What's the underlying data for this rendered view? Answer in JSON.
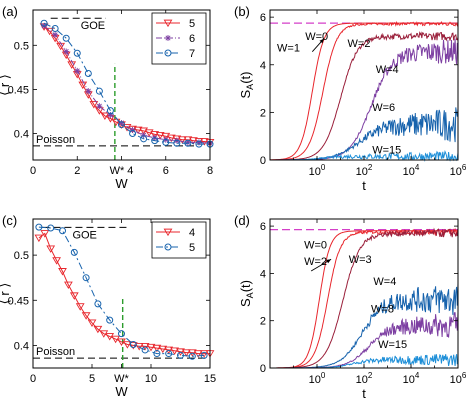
{
  "colors": {
    "red": "#e8262c",
    "purple": "#7d3fa2",
    "blue": "#1763ad",
    "green": "#2c9c2c",
    "magenta": "#d43fc8",
    "black": "#000000"
  },
  "chart_data": [
    {
      "panel": "(a)",
      "type": "line",
      "xlabel": "W",
      "ylabel": "⟨ r ⟩",
      "xlim": [
        0,
        8
      ],
      "ylim": [
        0.37,
        0.54
      ],
      "xticks": [
        "0",
        "2",
        "W* 4",
        "6",
        "8"
      ],
      "xtick_values": [
        0,
        2,
        4,
        6,
        8
      ],
      "yticks": [
        "0.4",
        "0.45",
        "0.5"
      ],
      "ytick_values": [
        0.4,
        0.45,
        0.5
      ],
      "references": [
        {
          "label": "GOE",
          "y": 0.5307,
          "x_from": 0.8,
          "x_to": 3.3
        },
        {
          "label": "Poisson",
          "y": 0.386,
          "x_from": 0,
          "x_to": 7.4
        }
      ],
      "critical": {
        "x": 3.7,
        "y_from": 0.37,
        "y_to": 0.479
      },
      "legend": [
        "5",
        "6",
        "7"
      ],
      "legend_position": "top-right",
      "series": [
        {
          "name": "5",
          "marker": "triangle-down",
          "color": "red",
          "x": [
            0.5,
            0.75,
            1,
            1.25,
            1.5,
            1.75,
            2,
            2.25,
            2.5,
            2.75,
            3,
            3.25,
            3.5,
            3.75,
            4,
            4.25,
            4.5,
            4.75,
            5,
            5.25,
            5.5,
            5.75,
            6,
            6.25,
            6.5,
            6.75,
            7,
            7.25,
            7.5,
            7.75,
            8
          ],
          "y": [
            0.521,
            0.516,
            0.508,
            0.499,
            0.489,
            0.478,
            0.467,
            0.455,
            0.444,
            0.433,
            0.426,
            0.42,
            0.417,
            0.413,
            0.41,
            0.407,
            0.405,
            0.404,
            0.403,
            0.401,
            0.399,
            0.398,
            0.397,
            0.395,
            0.394,
            0.393,
            0.393,
            0.392,
            0.391,
            0.391,
            0.39
          ]
        },
        {
          "name": "6",
          "marker": "star",
          "color": "purple",
          "x": [
            0.5,
            1,
            1.5,
            2,
            2.5,
            3,
            3.5,
            4,
            4.5,
            5,
            5.5,
            6,
            6.5,
            7,
            7.5,
            8
          ],
          "y": [
            0.522,
            0.512,
            0.493,
            0.471,
            0.448,
            0.431,
            0.421,
            0.412,
            0.404,
            0.398,
            0.395,
            0.393,
            0.392,
            0.39,
            0.39,
            0.389
          ]
        },
        {
          "name": "7",
          "marker": "circle",
          "color": "blue",
          "x": [
            0.5,
            1,
            1.5,
            2,
            2.5,
            3,
            3.5,
            4,
            4.5,
            5,
            5.5,
            6,
            6.5,
            7,
            7.5,
            8
          ],
          "y": [
            0.525,
            0.519,
            0.508,
            0.491,
            0.468,
            0.448,
            0.426,
            0.41,
            0.4,
            0.394,
            0.392,
            0.39,
            0.389,
            0.389,
            0.388,
            0.388
          ]
        }
      ]
    },
    {
      "panel": "(b)",
      "type": "line",
      "xlabel": "t",
      "ylabel": "S_A(t)",
      "xscale": "log",
      "xlim": [
        0.01,
        1000000
      ],
      "ylim": [
        0,
        6.3
      ],
      "xticks": [
        "10^0",
        "10^2",
        "10^4",
        "10^6"
      ],
      "xtick_values": [
        1,
        100,
        10000,
        1000000
      ],
      "yticks": [
        "0",
        "2",
        "4",
        "6"
      ],
      "ytick_values": [
        0,
        2,
        4,
        6
      ],
      "reference": {
        "y": 5.75,
        "color": "magenta"
      },
      "annotations": [
        "W=0",
        "W=1",
        "W=2",
        "W=4",
        "W=6",
        "W=15"
      ],
      "series": [
        {
          "name": "W=0",
          "color": "red",
          "saturation": 5.75,
          "rise_log_t": -0.2,
          "width": 0.55,
          "noise": 0.0
        },
        {
          "name": "W=1",
          "color": "red",
          "saturation": 5.72,
          "rise_log_t": 0.25,
          "width": 0.65,
          "noise": 0.02
        },
        {
          "name": "W=2",
          "color": "#9a1f3a",
          "saturation": 5.2,
          "rise_log_t": 1.0,
          "width": 0.8,
          "noise": 0.05
        },
        {
          "name": "W=4",
          "color": "purple",
          "saturation": 4.55,
          "rise_log_t": 2.3,
          "width": 1.0,
          "noise": 0.18
        },
        {
          "name": "W=6",
          "color": "blue",
          "saturation": 1.5,
          "rise_log_t": 1.8,
          "width": 1.2,
          "noise": 0.22
        },
        {
          "name": "W=15",
          "color": "#1e8fd8",
          "saturation": 0.15,
          "rise_log_t": 0.2,
          "width": 0.8,
          "noise": 0.05
        }
      ]
    },
    {
      "panel": "(c)",
      "type": "line",
      "xlabel": "W",
      "ylabel": "⟨ r ⟩",
      "xlim": [
        0,
        15
      ],
      "ylim": [
        0.375,
        0.54
      ],
      "xticks": [
        "0",
        "5",
        "W*",
        "10",
        "15"
      ],
      "xtick_values": [
        0,
        5,
        7.5,
        10,
        15
      ],
      "yticks": [
        "0.4",
        "0.45",
        "0.5"
      ],
      "ytick_values": [
        0.4,
        0.45,
        0.5
      ],
      "references": [
        {
          "label": "GOE",
          "y": 0.5307,
          "x_from": 0.8,
          "x_to": 8.0
        },
        {
          "label": "Poisson",
          "y": 0.386,
          "x_from": 0,
          "x_to": 14.8
        }
      ],
      "critical": {
        "x": 7.6,
        "y_from": 0.375,
        "y_to": 0.452
      },
      "legend": [
        "4",
        "5"
      ],
      "legend_position": "top-right",
      "series": [
        {
          "name": "4",
          "marker": "triangle-down",
          "color": "red",
          "x": [
            0.5,
            1,
            1.5,
            2,
            2.5,
            3,
            3.5,
            4,
            4.5,
            5,
            5.5,
            6,
            6.5,
            7,
            7.5,
            8,
            8.5,
            9,
            9.5,
            10,
            10.5,
            11,
            11.5,
            12,
            12.5,
            13,
            13.5,
            14,
            14.5,
            15
          ],
          "y": [
            0.519,
            0.524,
            0.507,
            0.494,
            0.482,
            0.467,
            0.455,
            0.443,
            0.433,
            0.425,
            0.418,
            0.413,
            0.41,
            0.407,
            0.404,
            0.401,
            0.4,
            0.399,
            0.399,
            0.398,
            0.397,
            0.396,
            0.395,
            0.394,
            0.393,
            0.392,
            0.392,
            0.391,
            0.391,
            0.391
          ]
        },
        {
          "name": "5",
          "marker": "circle",
          "color": "blue",
          "x": [
            0.5,
            1.5,
            2.5,
            3.5,
            4.5,
            5.5,
            6.5,
            7.5,
            8.5,
            9.5,
            10.5,
            11.5,
            12.5,
            13.5,
            14.5
          ],
          "y": [
            0.531,
            0.53,
            0.527,
            0.503,
            0.475,
            0.446,
            0.428,
            0.413,
            0.401,
            0.395,
            0.391,
            0.391,
            0.389,
            0.388,
            0.389
          ]
        }
      ]
    },
    {
      "panel": "(d)",
      "type": "line",
      "xlabel": "t",
      "ylabel": "S_A(t)",
      "xscale": "log",
      "xlim": [
        0.01,
        1000000
      ],
      "ylim": [
        0,
        6.3
      ],
      "xticks": [
        "10^0",
        "10^2",
        "10^4",
        "10^6"
      ],
      "xtick_values": [
        1,
        100,
        10000,
        1000000
      ],
      "yticks": [
        "0",
        "2",
        "4",
        "6"
      ],
      "ytick_values": [
        0,
        2,
        4,
        6
      ],
      "reference": {
        "y": 5.85,
        "color": "magenta"
      },
      "annotations": [
        "W=0",
        "W=2",
        "W=3",
        "W=4",
        "W=8",
        "W=15"
      ],
      "series": [
        {
          "name": "W=0",
          "color": "red",
          "saturation": 5.8,
          "rise_log_t": 0.1,
          "width": 0.5,
          "noise": 0.0
        },
        {
          "name": "W=2",
          "color": "red",
          "saturation": 5.75,
          "rise_log_t": 0.45,
          "width": 0.6,
          "noise": 0.03
        },
        {
          "name": "W=3",
          "color": "#9a1f3a",
          "saturation": 5.7,
          "rise_log_t": 1.1,
          "width": 0.8,
          "noise": 0.05
        },
        {
          "name": "W=4",
          "color": "blue",
          "saturation": 2.9,
          "rise_log_t": 1.9,
          "width": 1.0,
          "noise": 0.22
        },
        {
          "name": "W=8",
          "color": "purple",
          "saturation": 1.8,
          "rise_log_t": 2.2,
          "width": 1.0,
          "noise": 0.18
        },
        {
          "name": "W=15",
          "color": "#1e8fd8",
          "saturation": 0.35,
          "rise_log_t": 1.5,
          "width": 0.9,
          "noise": 0.08
        }
      ]
    }
  ]
}
